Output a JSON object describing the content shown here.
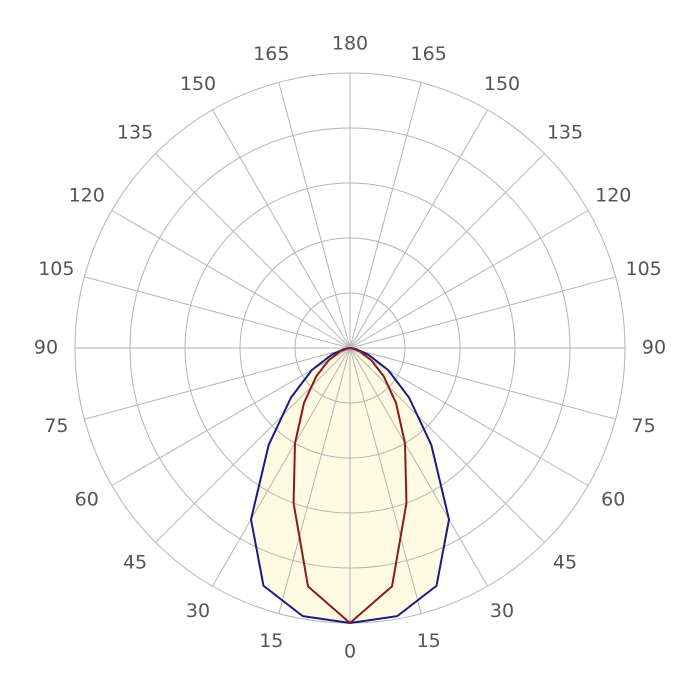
{
  "chart_data": {
    "type": "polar",
    "x": [
      0,
      10,
      20,
      30,
      40,
      50,
      60,
      70,
      80,
      90
    ],
    "series": [
      {
        "color": "#1a1a80",
        "fill": "#fffbe3",
        "values": [
          5.0,
          4.95,
          4.6,
          3.6,
          2.3,
          1.4,
          0.8,
          0.35,
          0.1,
          0
        ]
      },
      {
        "color": "#8b1a1a",
        "values": [
          5.0,
          4.4,
          3.0,
          2.0,
          1.3,
          0.8,
          0.45,
          0.2,
          0.05,
          0
        ]
      }
    ],
    "rlim": [
      0,
      5
    ],
    "rticks": [
      1,
      2,
      3,
      4,
      5
    ],
    "angle_ticks": [
      0,
      15,
      30,
      45,
      60,
      75,
      90,
      105,
      120,
      135,
      150,
      165,
      180
    ],
    "grid": true
  }
}
